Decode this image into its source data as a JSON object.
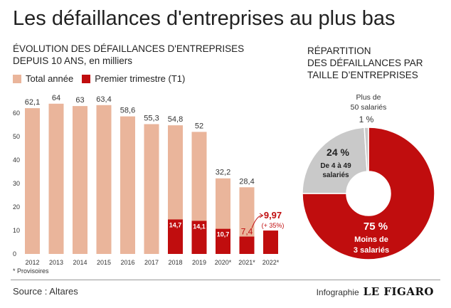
{
  "title": "Les défaillances d'entreprises au plus bas",
  "left_subtitle": [
    "ÉVOLUTION DES DÉFAILLANCES D'ENTREPRISES",
    "DEPUIS 10 ANS, en milliers"
  ],
  "right_subtitle": [
    "RÉPARTITION",
    "DES DÉFAILLANCES PAR",
    "TAILLE D’ENTREPRISES"
  ],
  "footnote": "* Provisoires",
  "source": "Source : Altares",
  "credit_prefix": "Infographie",
  "credit_brand": "LE FIGARO",
  "colors": {
    "total": "#eab59b",
    "t1": "#c00d0e",
    "grey": "#c9c9c9"
  },
  "chart_data": [
    {
      "type": "bar",
      "categories": [
        "2012",
        "2013",
        "2014",
        "2015",
        "2016",
        "2017",
        "2018",
        "2019",
        "2020*",
        "2021*",
        "2022*"
      ],
      "series": [
        {
          "name": "Total année",
          "values": [
            62.1,
            64,
            63,
            63.4,
            58.6,
            55.3,
            54.8,
            52,
            32.2,
            28.4,
            null
          ]
        },
        {
          "name": "Premier trimestre (T1)",
          "values": [
            null,
            null,
            null,
            null,
            null,
            null,
            14.7,
            14.1,
            10.7,
            7.4,
            9.97
          ]
        }
      ],
      "total_labels": [
        "62,1",
        "64",
        "63",
        "63,4",
        "58,6",
        "55,3",
        "54,8",
        "52",
        "32,2",
        "28,4",
        ""
      ],
      "t1_labels": [
        "",
        "",
        "",
        "",
        "",
        "",
        "14,7",
        "14,1",
        "10,7",
        "7,4",
        "9,97"
      ],
      "annotation": "(+ 35%)",
      "yticks": [
        "0",
        "10",
        "20",
        "30",
        "40",
        "50",
        "60"
      ],
      "ylim": [
        0,
        66
      ],
      "legend": "top-left"
    },
    {
      "type": "pie",
      "donut": true,
      "slices": [
        {
          "label": "Moins de 3 salariés",
          "lines": [
            "Moins de",
            "3 salariés"
          ],
          "pct_label": "75 %",
          "value": 75
        },
        {
          "label": "De 4 à 49 salariés",
          "lines": [
            "De 4 à 49",
            "salariés"
          ],
          "pct_label": "24 %",
          "value": 24
        },
        {
          "label": "Plus de 50 salariés",
          "lines": [
            "Plus de",
            "50 salariés"
          ],
          "pct_label": "1 %",
          "value": 1
        }
      ]
    }
  ]
}
